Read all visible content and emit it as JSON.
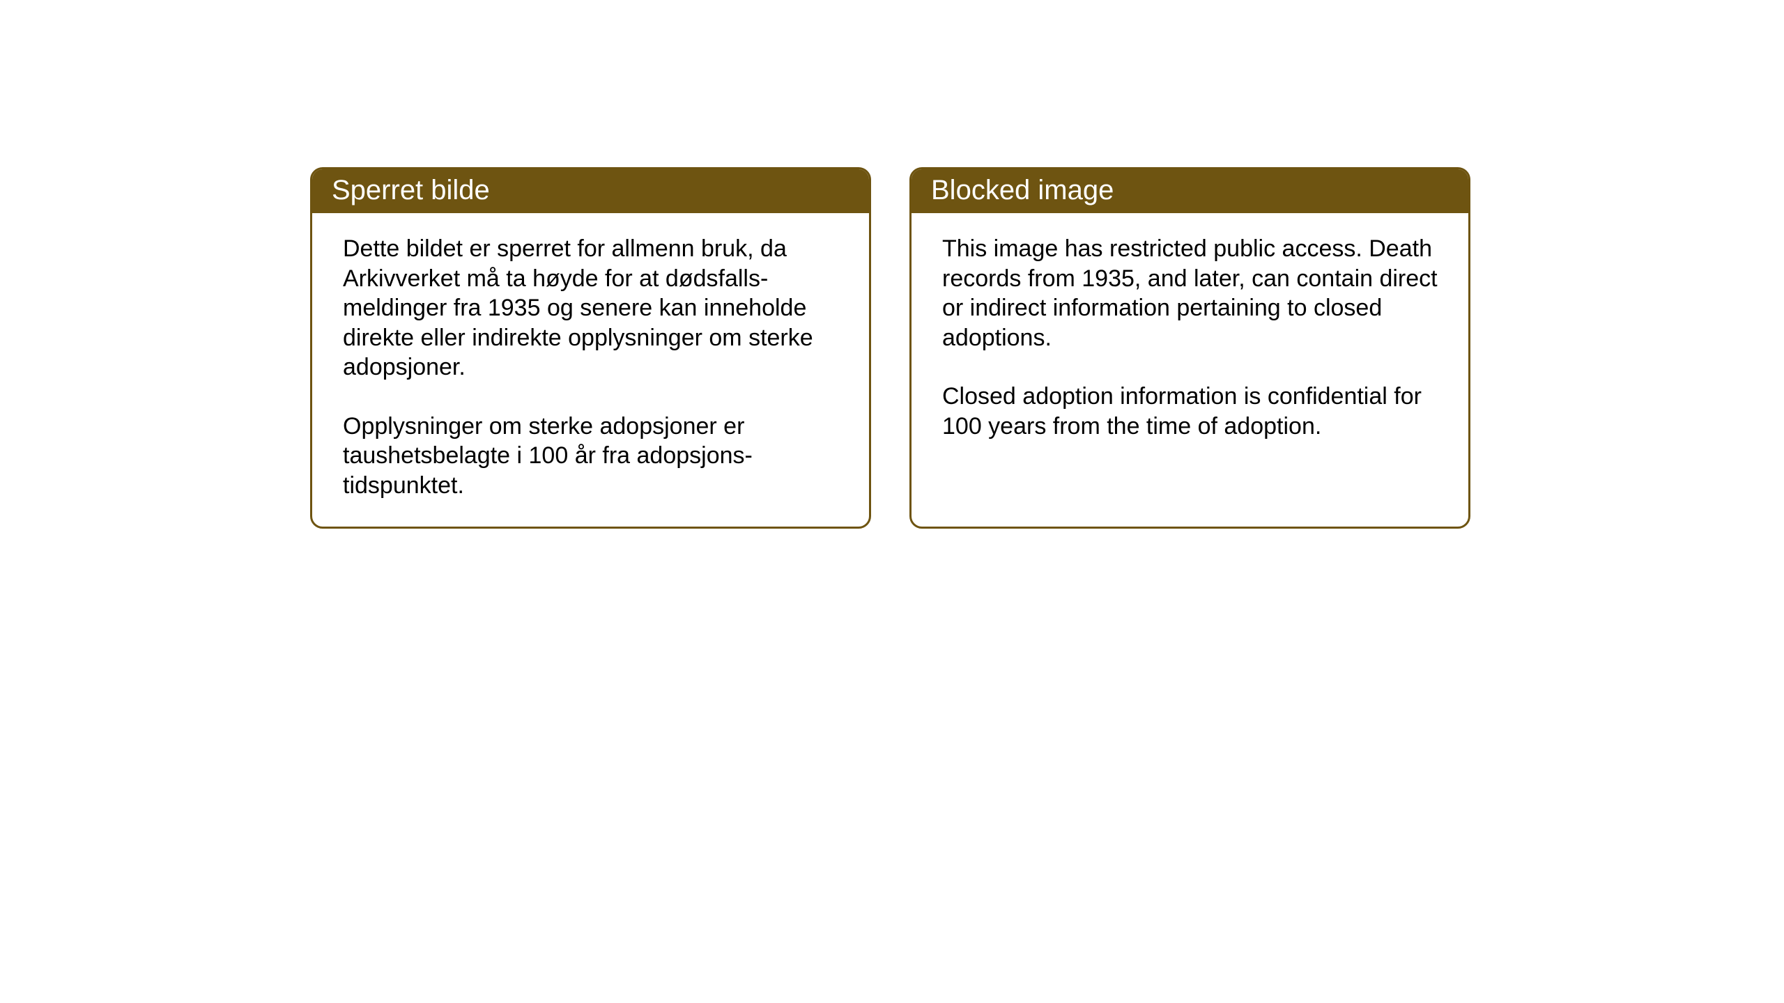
{
  "layout": {
    "background_color": "#ffffff",
    "box_border_color": "#6e5411",
    "header_background_color": "#6e5411",
    "header_text_color": "#ffffff",
    "body_text_color": "#000000",
    "header_fontsize": 40,
    "body_fontsize": 34,
    "border_radius": 18,
    "border_width": 3
  },
  "boxes": {
    "norwegian": {
      "title": "Sperret bilde",
      "paragraph1": "Dette bildet er sperret for allmenn bruk, da Arkivverket må ta høyde for at dødsfalls-meldinger fra 1935 og senere kan inneholde direkte eller indirekte opplysninger om sterke adopsjoner.",
      "paragraph2": "Opplysninger om sterke adopsjoner er taushetsbelagte i 100 år fra adopsjons-tidspunktet."
    },
    "english": {
      "title": "Blocked image",
      "paragraph1": "This image has restricted public access. Death records from 1935, and later, can contain direct or indirect information pertaining to closed adoptions.",
      "paragraph2": "Closed adoption information is confidential for 100 years from the time of adoption."
    }
  }
}
